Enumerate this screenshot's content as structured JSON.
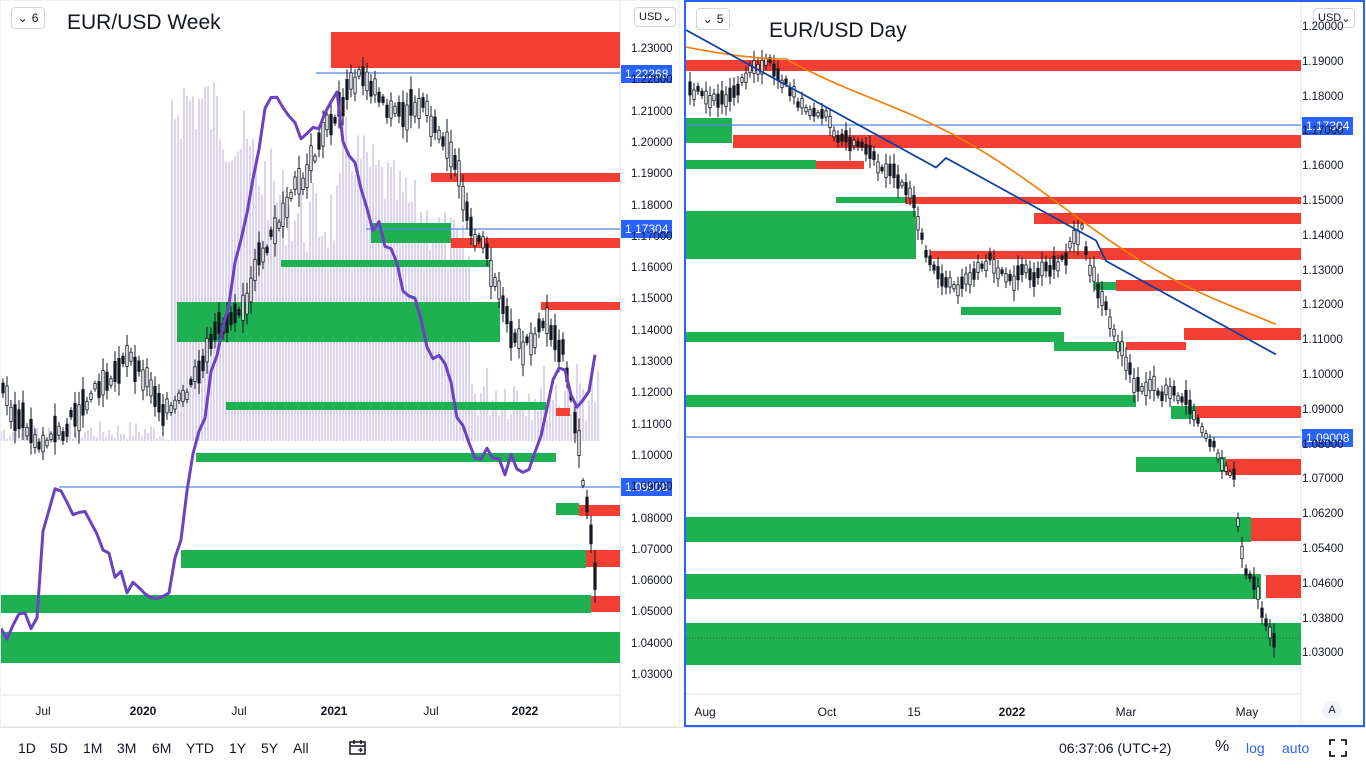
{
  "left_chart": {
    "interval_dropdown": "6",
    "title": "EUR/USD Week",
    "currency_dropdown": "USD",
    "price_labels": [
      "1.22268",
      "1.17304",
      "1.09008"
    ],
    "y_ticks": [
      "1.23000",
      "1.22000",
      "1.21000",
      "1.20000",
      "1.19000",
      "1.18000",
      "1.17000",
      "1.16000",
      "1.15000",
      "1.14000",
      "1.13000",
      "1.12000",
      "1.11000",
      "1.10000",
      "1.09000",
      "1.08000",
      "1.07000",
      "1.06000",
      "1.05000",
      "1.04000",
      "1.03000"
    ],
    "x_ticks": [
      {
        "label": "Jul",
        "bold": false
      },
      {
        "label": "2020",
        "bold": true
      },
      {
        "label": "Jul",
        "bold": false
      },
      {
        "label": "2021",
        "bold": true
      },
      {
        "label": "Jul",
        "bold": false
      },
      {
        "label": "2022",
        "bold": true
      }
    ]
  },
  "right_chart": {
    "interval_dropdown": "5",
    "title": "EUR/USD Day",
    "currency_dropdown": "USD",
    "price_labels": [
      "1.17304",
      "1.09008"
    ],
    "y_ticks": [
      "1.20000",
      "1.19000",
      "1.18000",
      "1.17000",
      "1.16000",
      "1.15000",
      "1.14000",
      "1.13000",
      "1.12000",
      "1.11000",
      "1.10000",
      "1.09000",
      "1.08000",
      "1.07000",
      "1.06200",
      "1.05400",
      "1.04600",
      "1.03800",
      "1.03000"
    ],
    "x_ticks": [
      {
        "label": "Aug",
        "bold": false
      },
      {
        "label": "Oct",
        "bold": false
      },
      {
        "label": "15",
        "bold": false
      },
      {
        "label": "2022",
        "bold": true
      },
      {
        "label": "Mar",
        "bold": false
      },
      {
        "label": "May",
        "bold": false
      }
    ],
    "axis_auto_label": "A"
  },
  "toolbar": {
    "timeframes": [
      "1D",
      "5D",
      "1M",
      "3M",
      "6M",
      "YTD",
      "1Y",
      "5Y",
      "All"
    ],
    "clock": "06:37:06 (UTC+2)",
    "percent_label": "%",
    "log_label": "log",
    "auto_label": "auto"
  },
  "colors": {
    "supply_zone": "#f23f34",
    "demand_zone": "#1fb052",
    "price_line": "#4f86e8",
    "purple_line": "#6a42c2",
    "fast_ma": "#f57c00",
    "slow_ma": "#0d3fa3",
    "label_bg": "#2962ff"
  }
}
